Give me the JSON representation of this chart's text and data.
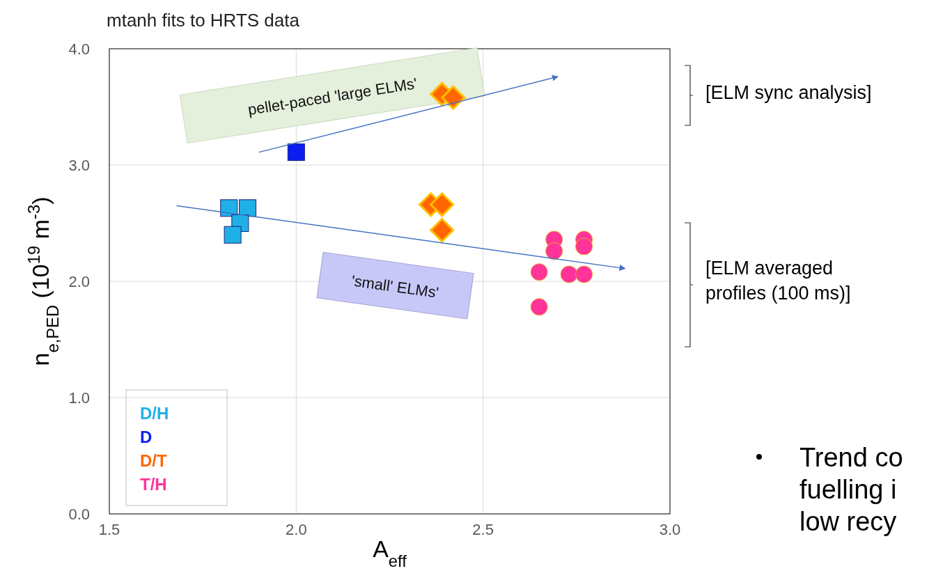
{
  "chart_data": {
    "type": "scatter",
    "title": "mtanh fits to HRTS data",
    "xlabel": "A$_{eff}$",
    "ylabel": "n$_{e,PED}$ (10$^{19}$ m$^{-3}$)",
    "xlim": [
      1.5,
      3.0
    ],
    "xticks": [
      {
        "value": 1.5,
        "label": "1.5"
      },
      {
        "value": 2.0,
        "label": "2.0"
      },
      {
        "value": 2.5,
        "label": "2.5"
      },
      {
        "value": 3.0,
        "label": "3.0"
      }
    ],
    "ylim": [
      0,
      4.0
    ],
    "yticks": [
      {
        "value": 0,
        "label": "0.0"
      },
      {
        "value": 1,
        "label": "1.0"
      },
      {
        "value": 2,
        "label": "2.0"
      },
      {
        "value": 3,
        "label": "3.0"
      },
      {
        "value": 4,
        "label": "4.0"
      }
    ],
    "grid": true,
    "legend": "bottom left",
    "series": [
      {
        "name": "D/H",
        "color": "#1fb0e8",
        "marker": "square",
        "x": [
          1.82,
          1.87,
          1.85,
          1.83
        ],
        "values": [
          2.63,
          2.63,
          2.5,
          2.4
        ]
      },
      {
        "name": "D",
        "color": "#0a1ef0",
        "marker": "square",
        "x": [
          2.0
        ],
        "values": [
          3.11
        ]
      },
      {
        "name": "D/T",
        "color": "#ff6600",
        "marker": "diamond",
        "x": [
          2.39,
          2.42,
          2.36,
          2.39,
          2.39
        ],
        "values": [
          3.61,
          3.58,
          2.66,
          2.66,
          2.44
        ]
      },
      {
        "name": "T/H",
        "color": "#ff3399",
        "marker": "circle",
        "x": [
          2.69,
          2.69,
          2.77,
          2.77,
          2.65,
          2.73,
          2.77,
          2.65
        ],
        "values": [
          2.36,
          2.26,
          2.36,
          2.3,
          2.08,
          2.06,
          2.06,
          1.78
        ]
      },
      {
        "type": "line",
        "color": "#4472c4",
        "marker": "none",
        "x": [
          1.9,
          2.7
        ],
        "values": [
          3.11,
          3.76
        ]
      },
      {
        "type": "line",
        "color": "#4472c4",
        "marker": "none",
        "x": [
          1.68,
          2.88
        ],
        "values": [
          2.65,
          2.11
        ]
      }
    ],
    "annotations": [
      "pellet-paced  'large ELMs'",
      "'small' ELMs'",
      "[ELM sync analysis]",
      "[ELM averaged\nprofiles (100 ms)]",
      "Trend co\nfuelling i\nlow recy"
    ]
  }
}
